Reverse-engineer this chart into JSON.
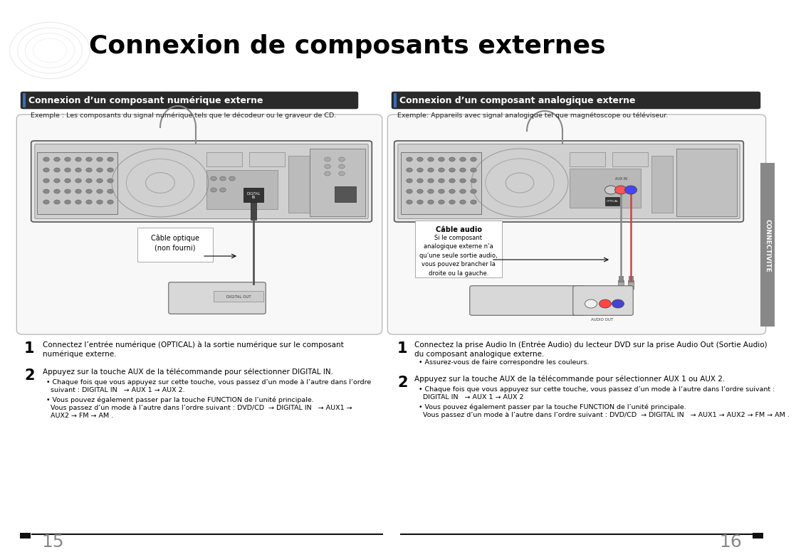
{
  "title": "Connexion de composants externes",
  "bg_color": "#ffffff",
  "section1_header": "Connexion d’un composant numérique externe",
  "section2_header": "Connexion d’un composant analogique externe",
  "section1_example": "Exemple : Les composants du signal numérique tels que le décodeur ou le graveur de CD.",
  "section2_example": "Exemple: Appareils avec signal analogique tel que magnétoscope ou téléviseur.",
  "cable_optique_label": "Câble optique\n(non fourni)",
  "cable_audio_label": "Câble audio",
  "cable_audio_note": "Si le composant\nanalogique externe n’a\nqu’une seule sortie audio,\nvous pouvez brancher la\ndroite ou la gauche.",
  "connectivite_label": "CONNECTIVITE",
  "step1_left_line1": "Connectez l’entrée numérique (OPTICAL) à la sortie numérique sur le composant",
  "step1_left_line2": "numérique externe.",
  "step2_left_line1": "Appuyez sur la touche AUX de la télécommande pour sélectionner DIGITAL IN.",
  "step2_left_b1": "• Chaque fois que vous appuyez sur cette touche, vous passez d’un mode à l’autre dans l’ordre",
  "step2_left_b1b": "  suivant : DIGITAL IN   → AUX 1 → AUX 2.",
  "step2_left_b2": "• Vous pouvez également passer par la touche FUNCTION de l’unité principale.",
  "step2_left_b2b": "  Vous passez d’un mode à l’autre dans l’ordre suivant : DVD/CD  → DIGITAL IN   → AUX1 →",
  "step2_left_b2c": "  AUX2 → FM → AM .",
  "step1_right_line1": "Connectez la prise Audio In (Entrée Audio) du lecteur DVD sur la prise Audio Out (Sortie Audio)",
  "step1_right_line2": "du composant analogique externe.",
  "step1_right_b1": "• Assurez-vous de faire correspondre les couleurs.",
  "step2_right_line1": "Appuyez sur la touche AUX de la télécommande pour sélectionner AUX 1 ou AUX 2.",
  "step2_right_b1": "• Chaque fois que vous appuyez sur cette touche, vous passez d’un mode à l’autre dans l’ordre suivant :",
  "step2_right_b1b": "  DIGITAL IN   → AUX 1 → AUX 2",
  "step2_right_b2": "• Vous pouvez également passer par la touche FUNCTION de l’unité principale.",
  "step2_right_b2b": "  Vous passez d’un mode à l’autre dans l’ordre suivant : DVD/CD  → DIGITAL IN   → AUX1 → AUX2 → FM → AM .",
  "page_left": "15",
  "page_right": "16"
}
